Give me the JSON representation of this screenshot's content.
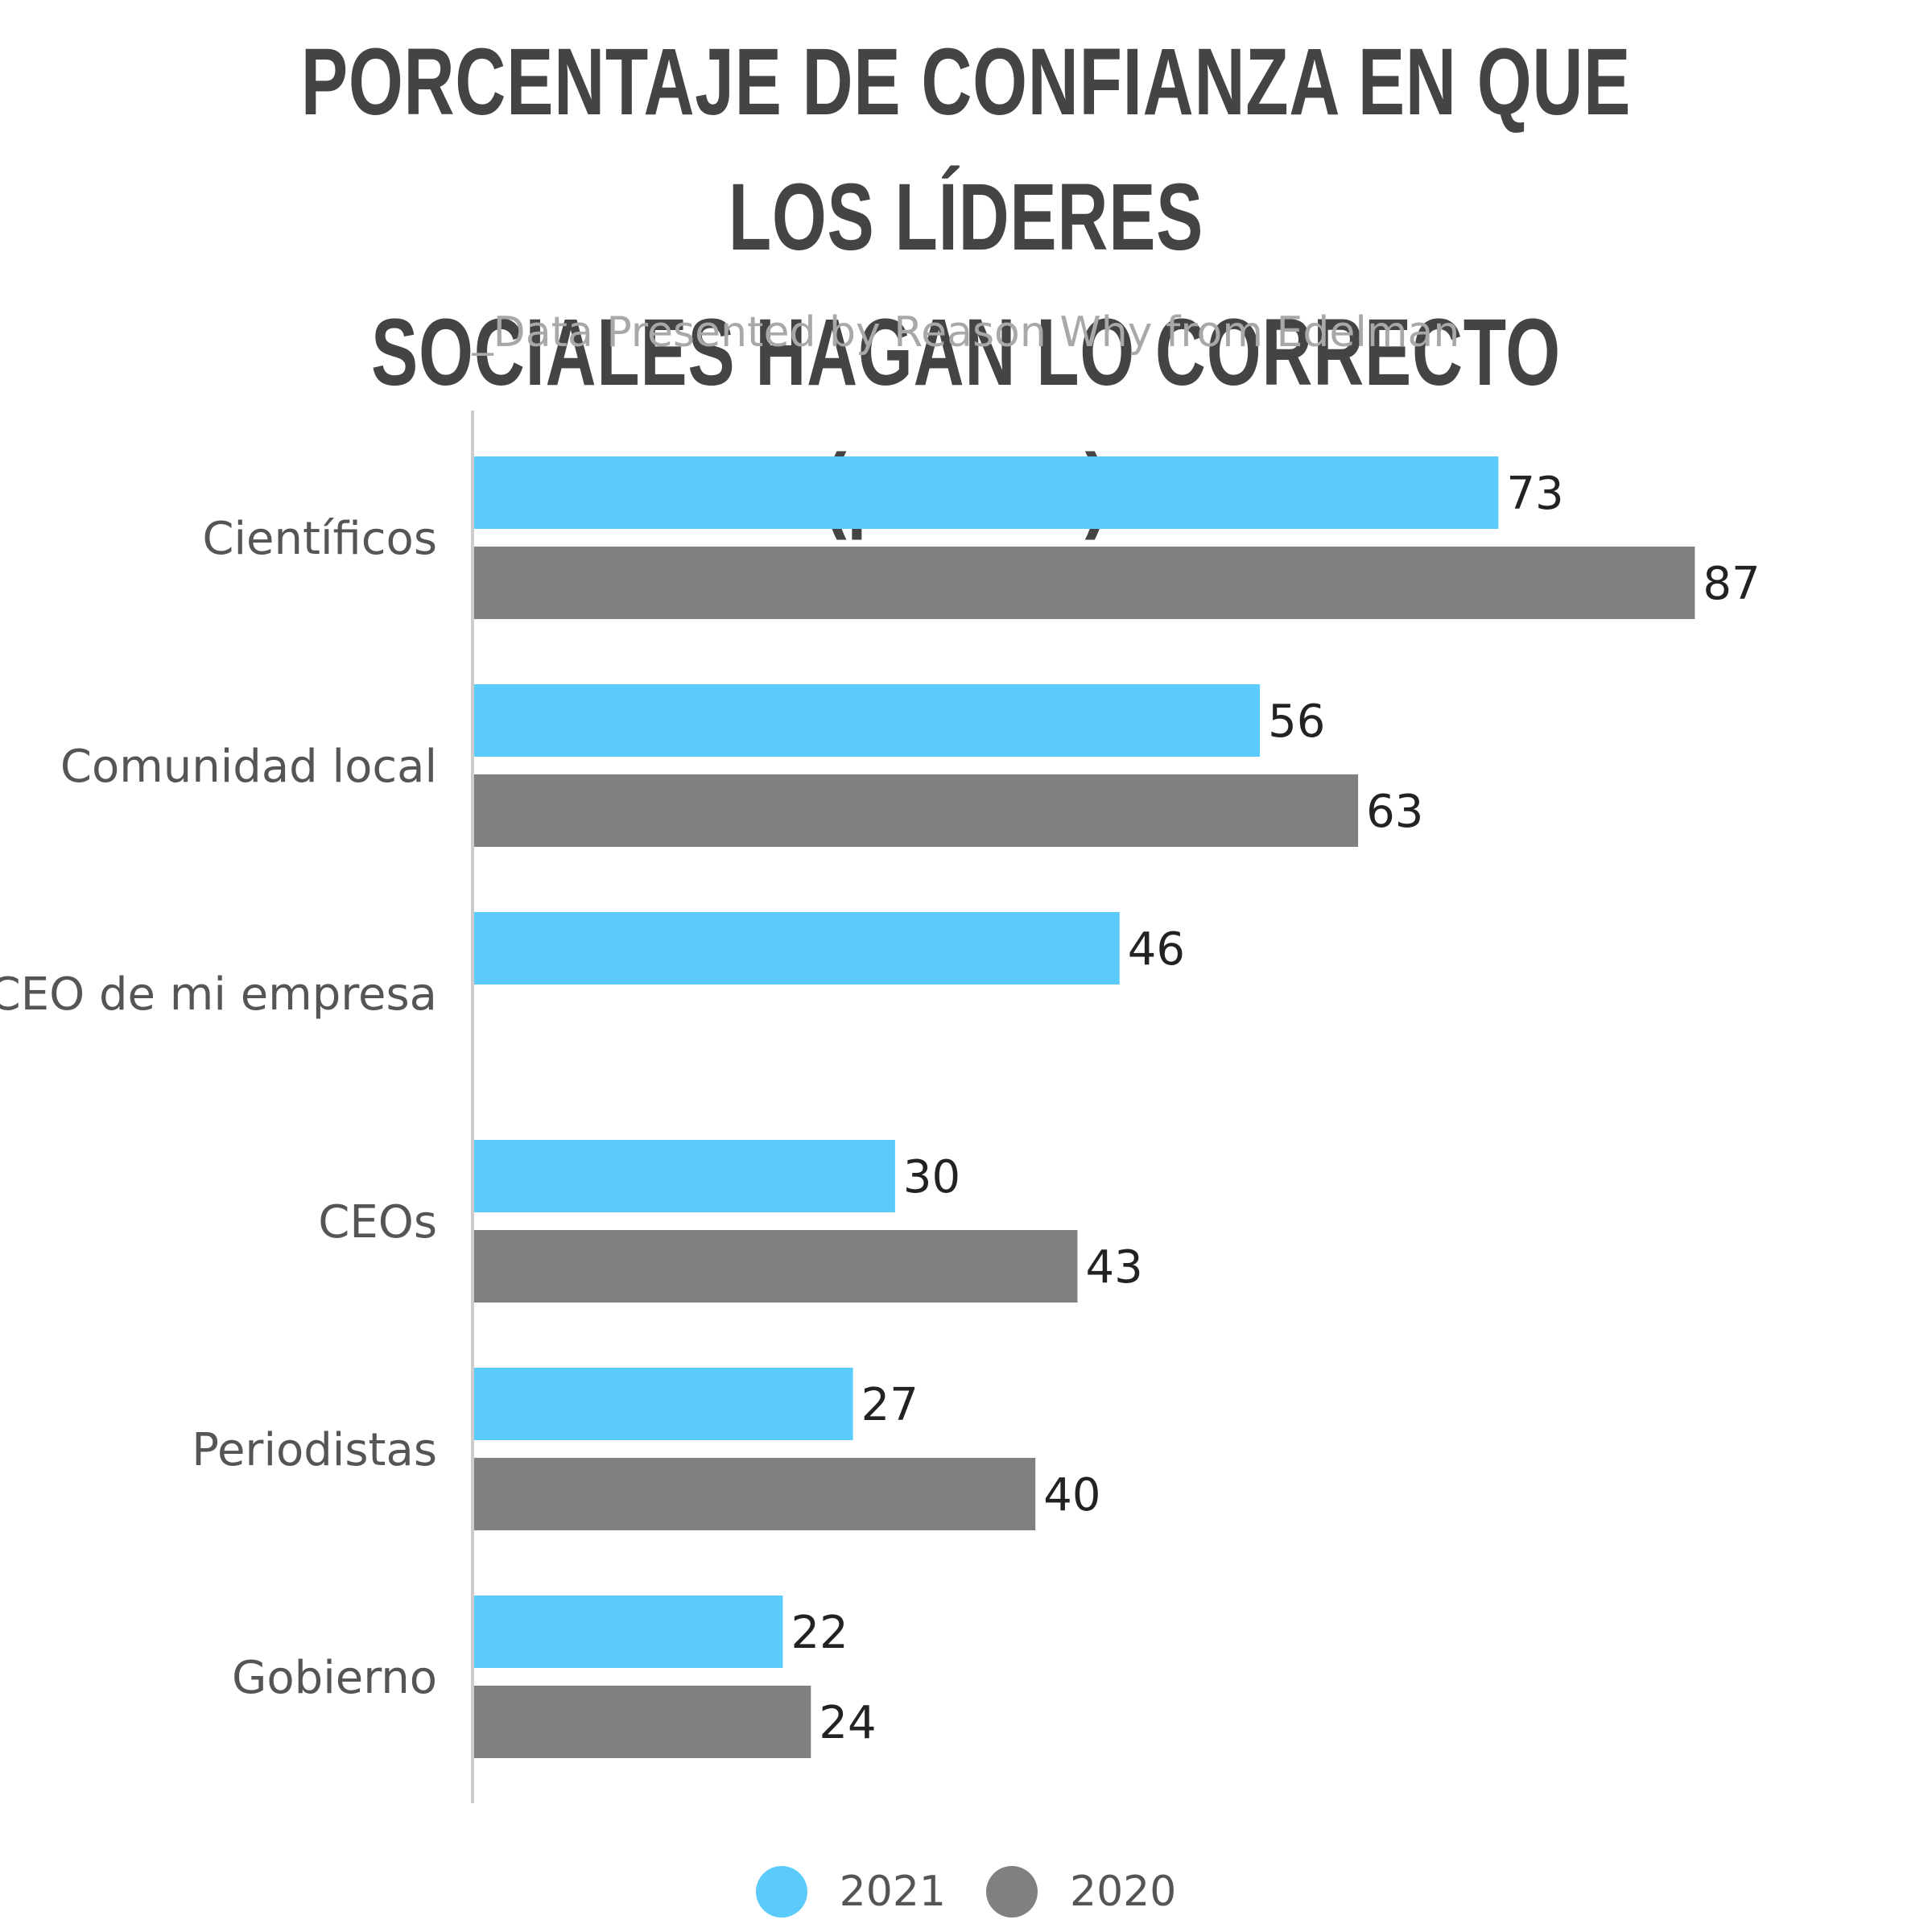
{
  "chart_data": {
    "type": "bar",
    "orientation": "horizontal",
    "title_line1": "PORCENTAJE DE CONFIANZA EN QUE LOS LÍDERES",
    "title_line2": "SOCIALES HAGAN LO CORRECTO (puntos)",
    "subtitle": "_Data Presented by Reason Why from Edelman",
    "categories": [
      "Científicos",
      "Comunidad local",
      "CEO de mi empresa",
      "CEOs",
      "Periodistas",
      "Gobierno"
    ],
    "series": [
      {
        "name": "2021",
        "color": "#5bcbfb",
        "values": [
          73,
          56,
          46,
          30,
          27,
          22
        ]
      },
      {
        "name": "2020",
        "color": "#808080",
        "values": [
          87,
          63,
          null,
          43,
          40,
          24
        ]
      }
    ],
    "xlim": [
      0,
      100
    ],
    "grid": false,
    "legend_position": "bottom-center",
    "data_labels": true
  }
}
